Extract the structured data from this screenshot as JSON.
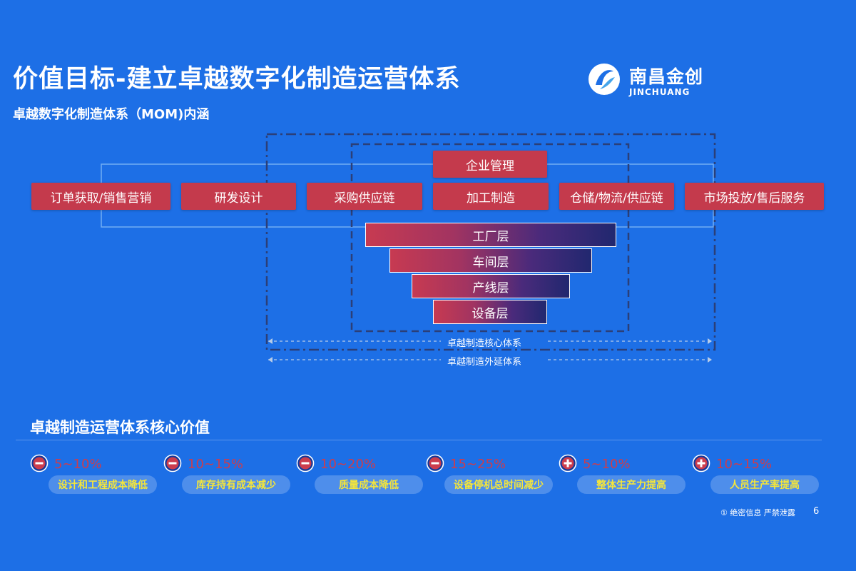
{
  "header": {
    "title": "价值目标-建立卓越数字化制造运营体系",
    "subtitle": "卓越数字化制造体系（MOM)内涵"
  },
  "logo": {
    "name_cn": "南昌金创",
    "name_en": "JINCHUANG",
    "icon": "jinchuang-logo-mark"
  },
  "process": {
    "top": "企业管理",
    "chain": [
      "订单获取/销售营销",
      "研发设计",
      "采购供应链",
      "加工制造",
      "仓储/物流/供应链",
      "市场投放/售后服务"
    ]
  },
  "layers": [
    "工厂层",
    "车间层",
    "产线层",
    "设备层"
  ],
  "scopes": {
    "core": "卓越制造核心体系",
    "extended": "卓越制造外延体系"
  },
  "values": {
    "title": "卓越制造运营体系核心价值",
    "items": [
      {
        "icon": "minus-icon",
        "value": "5~10%",
        "label": "设计和工程成本降低"
      },
      {
        "icon": "minus-icon",
        "value": "10~15%",
        "label": "库存持有成本减少"
      },
      {
        "icon": "minus-icon",
        "value": "10~20%",
        "label": "质量成本降低"
      },
      {
        "icon": "minus-icon",
        "value": "15~25%",
        "label": "设备停机总时间减少"
      },
      {
        "icon": "plus-icon",
        "value": "5~10%",
        "label": "整体生产力提高"
      },
      {
        "icon": "plus-icon",
        "value": "10~15%",
        "label": "人员生产率提高"
      }
    ]
  },
  "footer": {
    "note": "① 绝密信息 严禁泄露",
    "page": "6"
  },
  "colors": {
    "background": "#1d6fe6",
    "box_red": "#c43a4c",
    "value_red": "#cc3d4d",
    "label_yellow": "#f5e63a"
  }
}
